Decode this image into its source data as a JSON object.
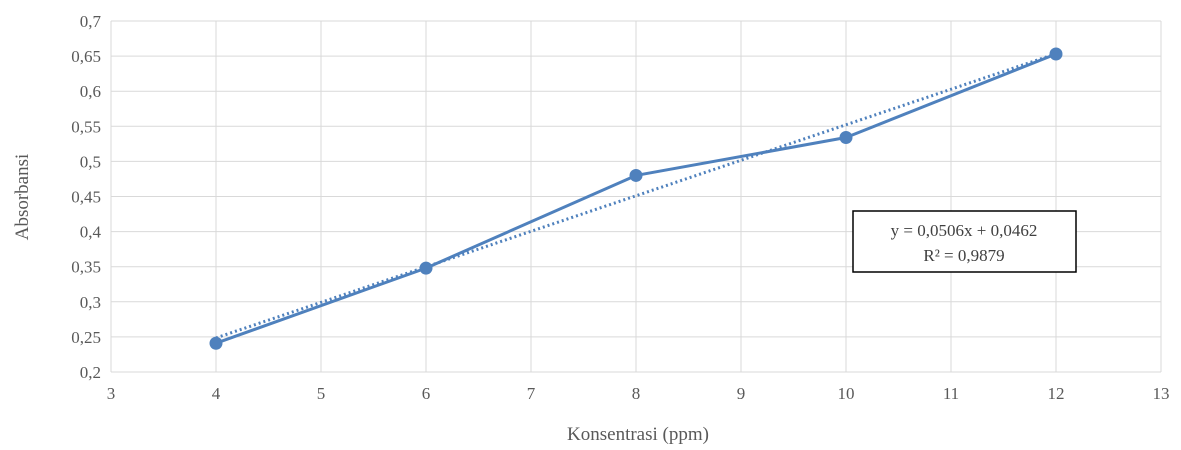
{
  "chart_data": {
    "type": "scatter",
    "xlabel": "Konsentrasi (ppm)",
    "ylabel": "Absorbansi",
    "xlim": [
      3,
      13
    ],
    "ylim": [
      0.2,
      0.7
    ],
    "x_ticks": [
      3,
      4,
      5,
      6,
      7,
      8,
      9,
      10,
      11,
      12,
      13
    ],
    "y_ticks": [
      0.2,
      0.25,
      0.3,
      0.35,
      0.4,
      0.45,
      0.5,
      0.55,
      0.6,
      0.65,
      0.7
    ],
    "x_tick_labels": [
      "3",
      "4",
      "5",
      "6",
      "7",
      "8",
      "9",
      "10",
      "11",
      "12",
      "13"
    ],
    "y_tick_labels": [
      "0,2",
      "0,25",
      "0,3",
      "0,35",
      "0,4",
      "0,45",
      "0,5",
      "0,55",
      "0,6",
      "0,65",
      "0,7"
    ],
    "grid": true,
    "series": [
      {
        "x": [
          4,
          6,
          8,
          10,
          12
        ],
        "y": [
          0.241,
          0.348,
          0.48,
          0.534,
          0.653
        ],
        "line": "solid",
        "markers": true,
        "color": "#4F81BD"
      }
    ],
    "trendline": {
      "type": "linear",
      "slope": 0.0506,
      "intercept": 0.0462,
      "style": "dotted",
      "color": "#4F81BD",
      "equation": "y = 0,0506x + 0,0462",
      "r_squared": "R² = 0,9879"
    }
  }
}
